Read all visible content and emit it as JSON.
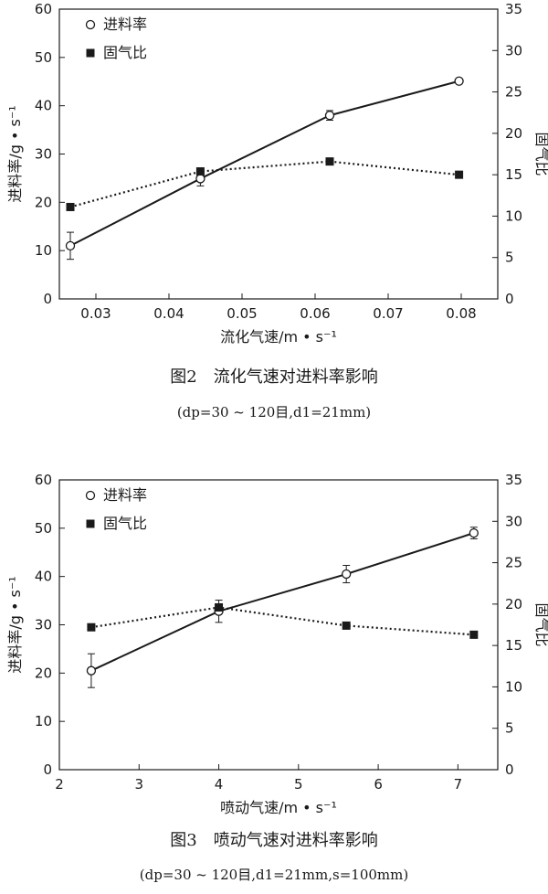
{
  "chart_data": [
    {
      "type": "line",
      "xlabel": "流化气速/m • s⁻¹",
      "ylabel": "进料率/g • s⁻¹",
      "y2label": "固气比",
      "xlim": [
        0.025,
        0.085
      ],
      "ylim": [
        0,
        60
      ],
      "y2lim": [
        0,
        35
      ],
      "xticks": [
        "0.03",
        "0.04",
        "0.05",
        "0.06",
        "0.07",
        "0.08"
      ],
      "yticks": [
        "0",
        "10",
        "20",
        "30",
        "40",
        "50",
        "60"
      ],
      "y2ticks": [
        "0",
        "5",
        "10",
        "15",
        "20",
        "25",
        "30",
        "35"
      ],
      "legend_position": "top-left",
      "series": [
        {
          "name": "进料率",
          "axis": "left",
          "marker": "open-circle",
          "line": "solid",
          "x": [
            0.0265,
            0.0443,
            0.062,
            0.0797
          ],
          "y": [
            11.0,
            24.9,
            38.0,
            45.1
          ],
          "err": [
            2.8,
            1.5,
            1.0,
            0.5
          ]
        },
        {
          "name": "固气比",
          "axis": "right",
          "marker": "filled-square",
          "line": "dotted",
          "x": [
            0.0265,
            0.0443,
            0.062,
            0.0797
          ],
          "y": [
            11.1,
            15.4,
            16.6,
            15.0
          ]
        }
      ]
    },
    {
      "type": "line",
      "xlabel": "喷动气速/m • s⁻¹",
      "ylabel": "进料率/g • s⁻¹",
      "y2label": "固气比",
      "xlim": [
        2,
        7.5
      ],
      "ylim": [
        0,
        60
      ],
      "y2lim": [
        0,
        35
      ],
      "xticks": [
        "2",
        "3",
        "4",
        "5",
        "6",
        "7"
      ],
      "yticks": [
        "0",
        "10",
        "20",
        "30",
        "40",
        "50",
        "60"
      ],
      "y2ticks": [
        "0",
        "5",
        "10",
        "15",
        "20",
        "25",
        "30",
        "35"
      ],
      "legend_position": "top-left",
      "series": [
        {
          "name": "进料率",
          "axis": "left",
          "marker": "open-circle",
          "line": "solid",
          "x": [
            2.4,
            4.0,
            5.6,
            7.2
          ],
          "y": [
            20.5,
            32.8,
            40.5,
            49.0
          ],
          "err": [
            3.5,
            2.3,
            1.8,
            1.2
          ]
        },
        {
          "name": "固气比",
          "axis": "right",
          "marker": "filled-square",
          "line": "dotted",
          "x": [
            2.4,
            4.0,
            5.6,
            7.2
          ],
          "y": [
            17.2,
            19.6,
            17.4,
            16.3
          ]
        }
      ]
    }
  ],
  "captions": [
    {
      "title": "图2　流化气速对进料率影响",
      "sub": "(dp=30 ~ 120目,d1=21mm)"
    },
    {
      "title": "图3　喷动气速对进料率影响",
      "sub": "(dp=30 ~ 120目,d1=21mm,s=100mm)"
    }
  ]
}
